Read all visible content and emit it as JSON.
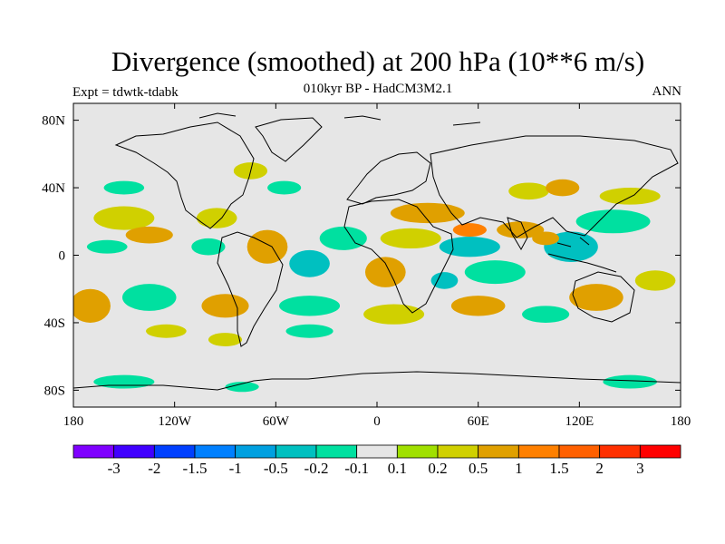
{
  "title": "Divergence (smoothed) at 200 hPa (10**6 m/s)",
  "subtitle": "010kyr BP - HadCM3M2.1",
  "left_label": "Expt = tdwtk-tdabk",
  "right_label": "ANN",
  "map": {
    "projection": "cylindrical-equidistant",
    "lon_range": [
      -180,
      180
    ],
    "lat_range": [
      -90,
      90
    ],
    "y_ticks": [
      {
        "lat": 80,
        "label": "80N"
      },
      {
        "lat": 40,
        "label": "40N"
      },
      {
        "lat": 0,
        "label": "0"
      },
      {
        "lat": -40,
        "label": "40S"
      },
      {
        "lat": -80,
        "label": "80S"
      }
    ],
    "x_ticks": [
      {
        "lon": -180,
        "label": "180"
      },
      {
        "lon": -120,
        "label": "120W"
      },
      {
        "lon": -60,
        "label": "60W"
      },
      {
        "lon": 0,
        "label": "0"
      },
      {
        "lon": 60,
        "label": "60E"
      },
      {
        "lon": 120,
        "label": "120E"
      },
      {
        "lon": 180,
        "label": "180"
      }
    ],
    "background_color": "#e6e6e6",
    "regions": [
      {
        "lon": -150,
        "lat": 22,
        "rx": 18,
        "ry": 7,
        "level": "0.2"
      },
      {
        "lon": -135,
        "lat": 12,
        "rx": 14,
        "ry": 5,
        "level": "0.5"
      },
      {
        "lon": -160,
        "lat": 5,
        "rx": 12,
        "ry": 4,
        "level": "-0.2"
      },
      {
        "lon": -95,
        "lat": 22,
        "rx": 12,
        "ry": 6,
        "level": "0.2"
      },
      {
        "lon": -100,
        "lat": 5,
        "rx": 10,
        "ry": 5,
        "level": "-0.2"
      },
      {
        "lon": -65,
        "lat": 5,
        "rx": 12,
        "ry": 10,
        "level": "0.5"
      },
      {
        "lon": -40,
        "lat": -5,
        "rx": 12,
        "ry": 8,
        "level": "-0.5"
      },
      {
        "lon": -20,
        "lat": 10,
        "rx": 14,
        "ry": 7,
        "level": "-0.2"
      },
      {
        "lon": 5,
        "lat": -10,
        "rx": 12,
        "ry": 9,
        "level": "0.5"
      },
      {
        "lon": 20,
        "lat": 10,
        "rx": 18,
        "ry": 6,
        "level": "0.2"
      },
      {
        "lon": 30,
        "lat": 25,
        "rx": 22,
        "ry": 6,
        "level": "0.5"
      },
      {
        "lon": 55,
        "lat": 5,
        "rx": 18,
        "ry": 6,
        "level": "-0.5"
      },
      {
        "lon": 70,
        "lat": -10,
        "rx": 18,
        "ry": 7,
        "level": "-0.2"
      },
      {
        "lon": 85,
        "lat": 15,
        "rx": 14,
        "ry": 5,
        "level": "0.5"
      },
      {
        "lon": 115,
        "lat": 5,
        "rx": 16,
        "ry": 9,
        "level": "-0.5"
      },
      {
        "lon": 140,
        "lat": 20,
        "rx": 22,
        "ry": 7,
        "level": "-0.2"
      },
      {
        "lon": 150,
        "lat": 35,
        "rx": 18,
        "ry": 5,
        "level": "0.2"
      },
      {
        "lon": 130,
        "lat": -25,
        "rx": 16,
        "ry": 8,
        "level": "0.5"
      },
      {
        "lon": 165,
        "lat": -15,
        "rx": 12,
        "ry": 6,
        "level": "0.2"
      },
      {
        "lon": -170,
        "lat": -30,
        "rx": 12,
        "ry": 10,
        "level": "0.5"
      },
      {
        "lon": -135,
        "lat": -25,
        "rx": 16,
        "ry": 8,
        "level": "-0.2"
      },
      {
        "lon": -90,
        "lat": -30,
        "rx": 14,
        "ry": 7,
        "level": "0.5"
      },
      {
        "lon": -40,
        "lat": -30,
        "rx": 18,
        "ry": 6,
        "level": "-0.2"
      },
      {
        "lon": 10,
        "lat": -35,
        "rx": 18,
        "ry": 6,
        "level": "0.2"
      },
      {
        "lon": 60,
        "lat": -30,
        "rx": 16,
        "ry": 6,
        "level": "0.5"
      },
      {
        "lon": 100,
        "lat": -35,
        "rx": 14,
        "ry": 5,
        "level": "-0.2"
      },
      {
        "lon": -40,
        "lat": -45,
        "rx": 14,
        "ry": 4,
        "level": "-0.2"
      },
      {
        "lon": -90,
        "lat": -50,
        "rx": 10,
        "ry": 4,
        "level": "0.2"
      },
      {
        "lon": -150,
        "lat": -75,
        "rx": 18,
        "ry": 4,
        "level": "-0.2"
      },
      {
        "lon": -80,
        "lat": -78,
        "rx": 10,
        "ry": 3,
        "level": "-0.2"
      },
      {
        "lon": 150,
        "lat": -75,
        "rx": 16,
        "ry": 4,
        "level": "-0.2"
      },
      {
        "lon": -75,
        "lat": 50,
        "rx": 10,
        "ry": 5,
        "level": "0.2"
      },
      {
        "lon": -55,
        "lat": 40,
        "rx": 10,
        "ry": 4,
        "level": "-0.2"
      },
      {
        "lon": 90,
        "lat": 38,
        "rx": 12,
        "ry": 5,
        "level": "0.2"
      },
      {
        "lon": 110,
        "lat": 40,
        "rx": 10,
        "ry": 5,
        "level": "0.5"
      },
      {
        "lon": -150,
        "lat": 40,
        "rx": 12,
        "ry": 4,
        "level": "-0.2"
      },
      {
        "lon": -125,
        "lat": -45,
        "rx": 12,
        "ry": 4,
        "level": "0.2"
      },
      {
        "lon": 40,
        "lat": -15,
        "rx": 8,
        "ry": 5,
        "level": "-0.5"
      },
      {
        "lon": 55,
        "lat": 15,
        "rx": 10,
        "ry": 4,
        "level": "1"
      },
      {
        "lon": 100,
        "lat": 10,
        "rx": 8,
        "ry": 4,
        "level": "0.5"
      }
    ]
  },
  "colorbar": {
    "colors": [
      "#7f00ff",
      "#4000ff",
      "#0040ff",
      "#0080ff",
      "#00a0e0",
      "#00c0c0",
      "#00e0a0",
      "#e6e6e6",
      "#a0e000",
      "#d0d000",
      "#e0a000",
      "#ff8000",
      "#ff6000",
      "#ff3000",
      "#ff0000"
    ],
    "labels": [
      "-3",
      "-2",
      "-1.5",
      "-1",
      "-0.5",
      "-0.2",
      "-0.1",
      "0.1",
      "0.2",
      "0.5",
      "1",
      "1.5",
      "2",
      "3"
    ]
  }
}
